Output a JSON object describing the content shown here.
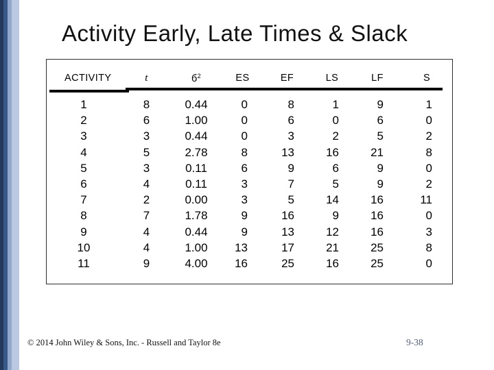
{
  "slide": {
    "title": "Activity Early, Late Times & Slack",
    "footer": "© 2014 John Wiley & Sons, Inc. - Russell and Taylor 8e",
    "page_number": "9-38"
  },
  "table": {
    "headers": [
      {
        "name": "activity",
        "label": "ACTIVITY"
      },
      {
        "name": "t",
        "label": "t",
        "italic": true
      },
      {
        "name": "variance",
        "label": "б",
        "sup": "2"
      },
      {
        "name": "es",
        "label": "ES"
      },
      {
        "name": "ef",
        "label": "EF"
      },
      {
        "name": "ls",
        "label": "LS"
      },
      {
        "name": "lf",
        "label": "LF"
      },
      {
        "name": "s",
        "label": "S"
      }
    ],
    "rows": [
      [
        "1",
        "8",
        "0.44",
        "0",
        "8",
        "1",
        "9",
        "1"
      ],
      [
        "2",
        "6",
        "1.00",
        "0",
        "6",
        "0",
        "6",
        "0"
      ],
      [
        "3",
        "3",
        "0.44",
        "0",
        "3",
        "2",
        "5",
        "2"
      ],
      [
        "4",
        "5",
        "2.78",
        "8",
        "13",
        "16",
        "21",
        "8"
      ],
      [
        "5",
        "3",
        "0.11",
        "6",
        "9",
        "6",
        "9",
        "0"
      ],
      [
        "6",
        "4",
        "0.11",
        "3",
        "7",
        "5",
        "9",
        "2"
      ],
      [
        "7",
        "2",
        "0.00",
        "3",
        "5",
        "14",
        "16",
        "11"
      ],
      [
        "8",
        "7",
        "1.78",
        "9",
        "16",
        "9",
        "16",
        "0"
      ],
      [
        "9",
        "4",
        "0.44",
        "9",
        "13",
        "12",
        "16",
        "3"
      ],
      [
        "10",
        "4",
        "1.00",
        "13",
        "17",
        "21",
        "25",
        "8"
      ],
      [
        "11",
        "9",
        "4.00",
        "16",
        "25",
        "16",
        "25",
        "0"
      ]
    ]
  },
  "colors": {
    "stripe1": "#24395b",
    "stripe2": "#36598a",
    "stripe3": "#93a9cc",
    "stripe4": "#bac9df",
    "pagenum": "#55617a"
  }
}
